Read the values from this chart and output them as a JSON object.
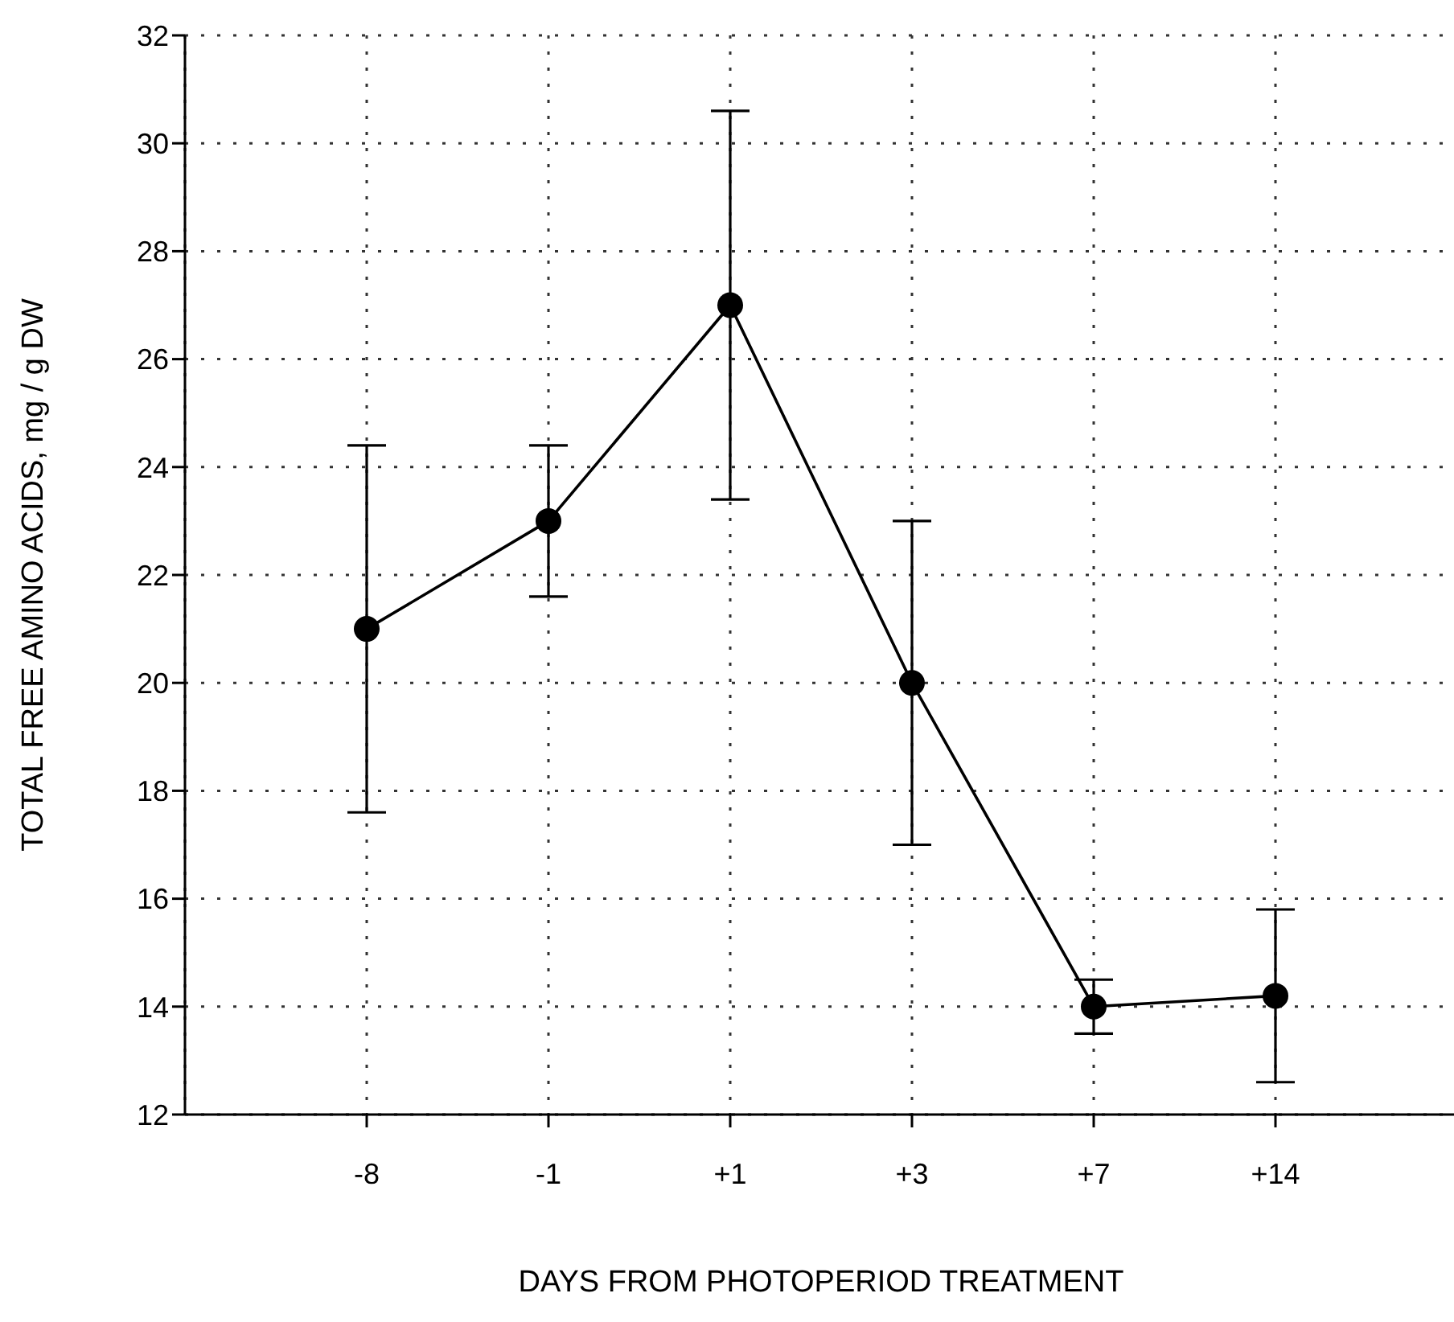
{
  "chart_data": {
    "type": "line",
    "xlabel": "DAYS FROM PHOTOPERIOD TREATMENT",
    "ylabel": "TOTAL FREE AMINO ACIDS, mg / g DW",
    "categories": [
      "-8",
      "-1",
      "+1",
      "+3",
      "+7",
      "+14"
    ],
    "series": [
      {
        "color": "#000000",
        "values": [
          21,
          23,
          27,
          20,
          14,
          14.2
        ],
        "errors": [
          3.4,
          1.4,
          3.6,
          3,
          0.5,
          1.6
        ]
      }
    ],
    "ylim": [
      12,
      32
    ],
    "yticks": [
      12,
      14,
      16,
      18,
      20,
      22,
      24,
      26,
      28,
      30,
      32
    ],
    "grid": true,
    "marker": "circle",
    "line_style": "solid"
  }
}
